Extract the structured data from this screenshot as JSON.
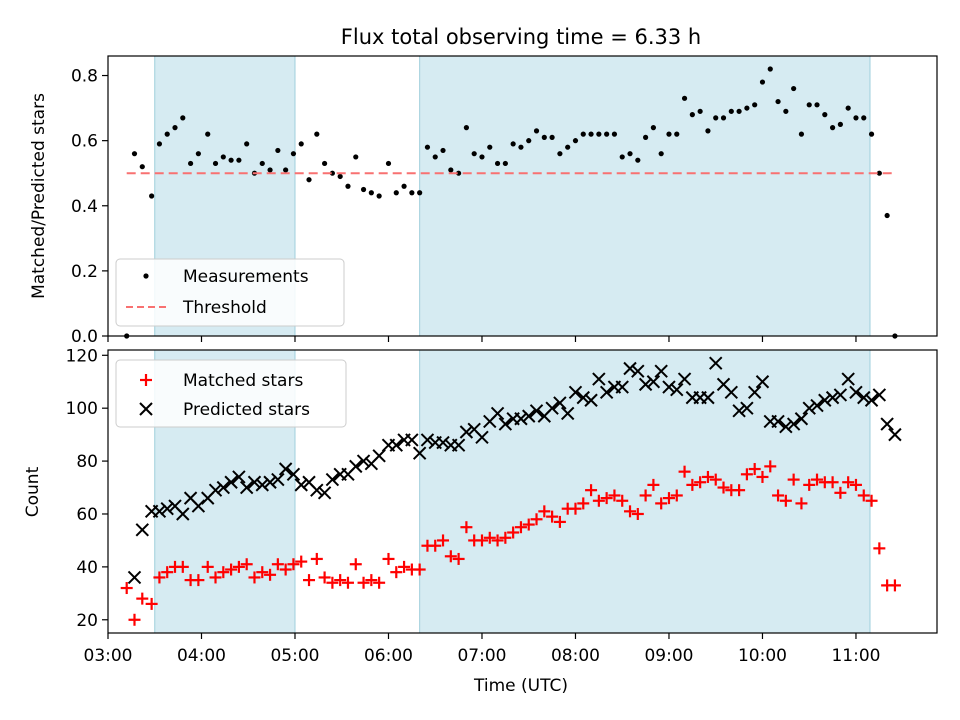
{
  "chart_data": [
    {
      "type": "scatter",
      "title": "Flux total observing time = 6.33 h",
      "ylabel": "Matched/Predicted stars",
      "xlabel": "",
      "xlim": [
        "03:00",
        "11:52"
      ],
      "ylim": [
        0,
        0.86
      ],
      "yticks": [
        "0.0",
        "0.2",
        "0.4",
        "0.6",
        "0.8"
      ],
      "xticks": [
        "03:00",
        "04:00",
        "05:00",
        "06:00",
        "07:00",
        "08:00",
        "09:00",
        "10:00",
        "11:00"
      ],
      "shaded_intervals": [
        [
          "03:30",
          "05:00"
        ],
        [
          "06:20",
          "11:09"
        ]
      ],
      "legend": {
        "placement": "lower-left",
        "entries": [
          "Measurements",
          "Threshold"
        ]
      },
      "series": [
        {
          "name": "Measurements",
          "marker": "dot",
          "color": "#000000",
          "x": [
            "03:12",
            "03:17",
            "03:22",
            "03:28",
            "03:33",
            "03:38",
            "03:43",
            "03:48",
            "03:53",
            "03:58",
            "04:04",
            "04:09",
            "04:14",
            "04:19",
            "04:24",
            "04:29",
            "04:34",
            "04:39",
            "04:44",
            "04:49",
            "04:54",
            "04:59",
            "05:04",
            "05:09",
            "05:14",
            "05:19",
            "05:24",
            "05:29",
            "05:34",
            "05:39",
            "05:44",
            "05:49",
            "05:54",
            "06:00",
            "06:05",
            "06:10",
            "06:15",
            "06:20",
            "06:25",
            "06:30",
            "06:35",
            "06:40",
            "06:45",
            "06:50",
            "06:55",
            "07:00",
            "07:05",
            "07:10",
            "07:15",
            "07:20",
            "07:25",
            "07:30",
            "07:35",
            "07:40",
            "07:45",
            "07:50",
            "07:55",
            "08:00",
            "08:05",
            "08:10",
            "08:15",
            "08:20",
            "08:25",
            "08:30",
            "08:35",
            "08:40",
            "08:45",
            "08:50",
            "08:55",
            "09:00",
            "09:05",
            "09:10",
            "09:15",
            "09:20",
            "09:25",
            "09:30",
            "09:35",
            "09:40",
            "09:45",
            "09:50",
            "09:55",
            "10:00",
            "10:05",
            "10:10",
            "10:15",
            "10:20",
            "10:25",
            "10:30",
            "10:35",
            "10:40",
            "10:45",
            "10:50",
            "10:55",
            "11:00",
            "11:05",
            "11:10",
            "11:15",
            "11:20",
            "11:25"
          ],
          "values": [
            0.0,
            0.56,
            0.52,
            0.43,
            0.59,
            0.62,
            0.64,
            0.67,
            0.53,
            0.56,
            0.62,
            0.53,
            0.55,
            0.54,
            0.54,
            0.59,
            0.5,
            0.53,
            0.51,
            0.57,
            0.51,
            0.56,
            0.59,
            0.48,
            0.62,
            0.53,
            0.5,
            0.49,
            0.46,
            0.55,
            0.45,
            0.44,
            0.43,
            0.53,
            0.44,
            0.46,
            0.44,
            0.44,
            0.58,
            0.55,
            0.57,
            0.51,
            0.5,
            0.64,
            0.56,
            0.55,
            0.58,
            0.53,
            0.53,
            0.59,
            0.58,
            0.6,
            0.63,
            0.61,
            0.61,
            0.56,
            0.58,
            0.6,
            0.62,
            0.62,
            0.62,
            0.62,
            0.62,
            0.55,
            0.56,
            0.54,
            0.61,
            0.64,
            0.56,
            0.62,
            0.62,
            0.73,
            0.68,
            0.69,
            0.63,
            0.67,
            0.67,
            0.69,
            0.69,
            0.7,
            0.71,
            0.78,
            0.82,
            0.72,
            0.69,
            0.76,
            0.62,
            0.71,
            0.71,
            0.68,
            0.64,
            0.65,
            0.7,
            0.67,
            0.67,
            0.62,
            0.5,
            0.37,
            0.0
          ]
        },
        {
          "name": "Threshold",
          "style": "dashed",
          "color": "#f87171",
          "x": [
            "03:12",
            "11:25"
          ],
          "values": [
            0.5,
            0.5
          ]
        }
      ]
    },
    {
      "type": "scatter",
      "title": "",
      "ylabel": "Count",
      "xlabel": "Time (UTC)",
      "xlim": [
        "03:00",
        "11:52"
      ],
      "ylim": [
        15,
        122
      ],
      "yticks": [
        "20",
        "40",
        "60",
        "80",
        "100",
        "120"
      ],
      "xticks": [
        "03:00",
        "04:00",
        "05:00",
        "06:00",
        "07:00",
        "08:00",
        "09:00",
        "10:00",
        "11:00"
      ],
      "shaded_intervals": [
        [
          "03:30",
          "05:00"
        ],
        [
          "06:20",
          "11:09"
        ]
      ],
      "legend": {
        "placement": "upper-left",
        "entries": [
          "Matched stars",
          "Predicted stars"
        ]
      },
      "series": [
        {
          "name": "Matched stars",
          "marker": "plus",
          "color": "#ff0000",
          "x": [
            "03:12",
            "03:17",
            "03:22",
            "03:28",
            "03:33",
            "03:38",
            "03:43",
            "03:48",
            "03:53",
            "03:58",
            "04:04",
            "04:09",
            "04:14",
            "04:19",
            "04:24",
            "04:29",
            "04:34",
            "04:39",
            "04:44",
            "04:49",
            "04:54",
            "04:59",
            "05:04",
            "05:09",
            "05:14",
            "05:19",
            "05:24",
            "05:29",
            "05:34",
            "05:39",
            "05:44",
            "05:49",
            "05:54",
            "06:00",
            "06:05",
            "06:10",
            "06:15",
            "06:20",
            "06:25",
            "06:30",
            "06:35",
            "06:40",
            "06:45",
            "06:50",
            "06:55",
            "07:00",
            "07:05",
            "07:10",
            "07:15",
            "07:20",
            "07:25",
            "07:30",
            "07:35",
            "07:40",
            "07:45",
            "07:50",
            "07:55",
            "08:00",
            "08:05",
            "08:10",
            "08:15",
            "08:20",
            "08:25",
            "08:30",
            "08:35",
            "08:40",
            "08:45",
            "08:50",
            "08:55",
            "09:00",
            "09:05",
            "09:10",
            "09:15",
            "09:20",
            "09:25",
            "09:30",
            "09:35",
            "09:40",
            "09:45",
            "09:50",
            "09:55",
            "10:00",
            "10:05",
            "10:10",
            "10:15",
            "10:20",
            "10:25",
            "10:30",
            "10:35",
            "10:40",
            "10:45",
            "10:50",
            "10:55",
            "11:00",
            "11:05",
            "11:10",
            "11:15",
            "11:20",
            "11:25"
          ],
          "values": [
            32,
            20,
            28,
            26,
            36,
            38,
            40,
            40,
            35,
            35,
            40,
            36,
            38,
            39,
            40,
            41,
            36,
            38,
            37,
            41,
            39,
            41,
            42,
            35,
            43,
            36,
            34,
            35,
            34,
            41,
            34,
            35,
            34,
            43,
            38,
            40,
            39,
            39,
            48,
            48,
            50,
            44,
            43,
            55,
            50,
            50,
            51,
            50,
            51,
            53,
            55,
            56,
            58,
            61,
            59,
            57,
            62,
            62,
            64,
            69,
            65,
            66,
            67,
            65,
            61,
            60,
            67,
            71,
            64,
            66,
            67,
            76,
            71,
            72,
            74,
            73,
            70,
            69,
            69,
            75,
            77,
            74,
            78,
            67,
            65,
            73,
            64,
            71,
            73,
            72,
            72,
            68,
            72,
            71,
            67,
            65,
            47,
            33,
            33
          ]
        },
        {
          "name": "Predicted stars",
          "marker": "x",
          "color": "#000000",
          "x": [
            "03:12",
            "03:17",
            "03:22",
            "03:28",
            "03:33",
            "03:38",
            "03:43",
            "03:48",
            "03:53",
            "03:58",
            "04:04",
            "04:09",
            "04:14",
            "04:19",
            "04:24",
            "04:29",
            "04:34",
            "04:39",
            "04:44",
            "04:49",
            "04:54",
            "04:59",
            "05:04",
            "05:09",
            "05:14",
            "05:19",
            "05:24",
            "05:29",
            "05:34",
            "05:39",
            "05:44",
            "05:49",
            "05:54",
            "06:00",
            "06:05",
            "06:10",
            "06:15",
            "06:20",
            "06:25",
            "06:30",
            "06:35",
            "06:40",
            "06:45",
            "06:50",
            "06:55",
            "07:00",
            "07:05",
            "07:10",
            "07:15",
            "07:20",
            "07:25",
            "07:30",
            "07:35",
            "07:40",
            "07:45",
            "07:50",
            "07:55",
            "08:00",
            "08:05",
            "08:10",
            "08:15",
            "08:20",
            "08:25",
            "08:30",
            "08:35",
            "08:40",
            "08:45",
            "08:50",
            "08:55",
            "09:00",
            "09:05",
            "09:10",
            "09:15",
            "09:20",
            "09:25",
            "09:30",
            "09:35",
            "09:40",
            "09:45",
            "09:50",
            "09:55",
            "10:00",
            "10:05",
            "10:10",
            "10:15",
            "10:20",
            "10:25",
            "10:30",
            "10:35",
            "10:40",
            "10:45",
            "10:50",
            "10:55",
            "11:00",
            "11:05",
            "11:10",
            "11:15",
            "11:20",
            "11:25"
          ],
          "values": [
            null,
            36,
            54,
            61,
            61,
            62,
            63,
            60,
            66,
            63,
            66,
            69,
            70,
            72,
            74,
            70,
            72,
            71,
            72,
            73,
            77,
            75,
            71,
            72,
            69,
            68,
            73,
            75,
            75,
            78,
            80,
            79,
            82,
            86,
            86,
            88,
            88,
            83,
            88,
            87,
            87,
            86,
            86,
            91,
            92,
            89,
            95,
            98,
            94,
            96,
            96,
            97,
            99,
            97,
            100,
            102,
            98,
            106,
            104,
            103,
            111,
            106,
            108,
            108,
            115,
            114,
            109,
            110,
            114,
            108,
            107,
            111,
            104,
            104,
            104,
            117,
            109,
            106,
            99,
            100,
            106,
            110,
            95,
            95,
            93,
            94,
            96,
            100,
            101,
            103,
            104,
            105,
            111,
            106,
            104,
            103,
            105,
            94,
            90
          ]
        }
      ]
    }
  ]
}
